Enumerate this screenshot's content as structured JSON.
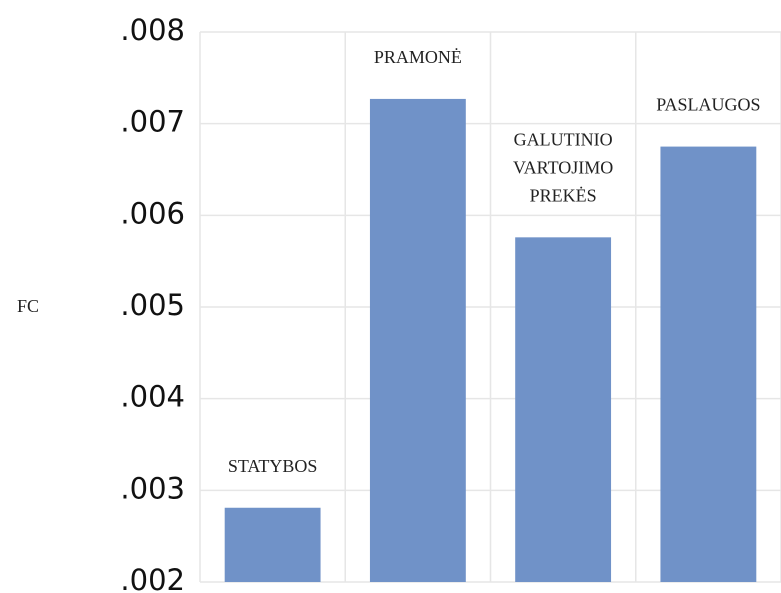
{
  "chart_data": {
    "type": "bar",
    "y_label": "FC",
    "categories": [
      "STATYBOS",
      "PRAMONĖ",
      "GALUTINIO VARTOJIMO PREKĖS",
      "PASLAUGOS"
    ],
    "values": [
      0.00281,
      0.00727,
      0.00576,
      0.00675
    ],
    "color": "#7092c8",
    "ylim": [
      0.002,
      0.008
    ],
    "yticks": [
      {
        "value": 0.002,
        "label": ".002"
      },
      {
        "value": 0.003,
        "label": ".003"
      },
      {
        "value": 0.004,
        "label": ".004"
      },
      {
        "value": 0.005,
        "label": ".005"
      },
      {
        "value": 0.006,
        "label": ".006"
      },
      {
        "value": 0.007,
        "label": ".007"
      },
      {
        "value": 0.008,
        "label": ".008"
      }
    ],
    "grid": true
  }
}
